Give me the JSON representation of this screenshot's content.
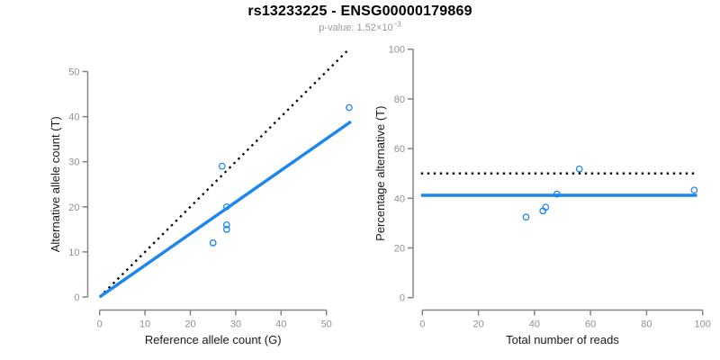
{
  "header": {
    "title": "rs13233225 - ENSG00000179869",
    "subtitle_prefix": "p-value: 1.52×10",
    "subtitle_exponent": "−3"
  },
  "colors": {
    "accent_blue": "#1c86ee",
    "dotted_line": "#000000",
    "axis_line": "#848484",
    "tick_label": "#919191",
    "axis_title": "#1a1a1a",
    "title_color": "#000000",
    "subtitle_color": "#9a9a9a",
    "background": "#ffffff"
  },
  "chart_data": [
    {
      "type": "scatter",
      "title": "",
      "xlabel": "Reference allele count (G)",
      "ylabel": "Alternative allele count (T)",
      "xticks": [
        0,
        10,
        20,
        30,
        40,
        50
      ],
      "yticks": [
        0,
        10,
        20,
        30,
        40,
        50
      ],
      "xlim": [
        -2.3,
        57.3
      ],
      "ylim": [
        -2.3,
        57.3
      ],
      "grid": false,
      "marker": "open-circle",
      "points": [
        {
          "x": 27,
          "y": 29
        },
        {
          "x": 28,
          "y": 20
        },
        {
          "x": 28,
          "y": 16
        },
        {
          "x": 28,
          "y": 15
        },
        {
          "x": 25,
          "y": 12
        },
        {
          "x": 55,
          "y": 42
        }
      ],
      "lines": [
        {
          "kind": "abline",
          "intercept": 0,
          "slope": 1,
          "style": "dotted",
          "color": "#000000",
          "x1": 0,
          "x2": 55
        },
        {
          "kind": "abline",
          "intercept": 0,
          "slope": 0.702,
          "style": "solid",
          "color": "#1c86ee",
          "x1": 0,
          "x2": 55.4
        }
      ]
    },
    {
      "type": "scatter",
      "title": "",
      "xlabel": "Total number of reads",
      "ylabel": "Percentage alternative (T)",
      "xticks": [
        0,
        20,
        40,
        60,
        80,
        100
      ],
      "yticks": [
        0,
        20,
        40,
        60,
        80,
        100
      ],
      "xlim": [
        -4,
        104
      ],
      "ylim": [
        -4,
        104
      ],
      "grid": false,
      "marker": "open-circle",
      "points": [
        {
          "x": 56,
          "y": 51.8
        },
        {
          "x": 48,
          "y": 41.7
        },
        {
          "x": 44,
          "y": 36.4
        },
        {
          "x": 43,
          "y": 34.9
        },
        {
          "x": 37,
          "y": 32.4
        },
        {
          "x": 97,
          "y": 43.3
        }
      ],
      "lines": [
        {
          "kind": "hline",
          "y": 50,
          "style": "dotted",
          "color": "#000000",
          "x1": -0.5,
          "x2": 98
        },
        {
          "kind": "hline",
          "y": 41.2,
          "style": "solid",
          "color": "#1c86ee",
          "x1": -0.5,
          "x2": 98
        }
      ]
    }
  ]
}
